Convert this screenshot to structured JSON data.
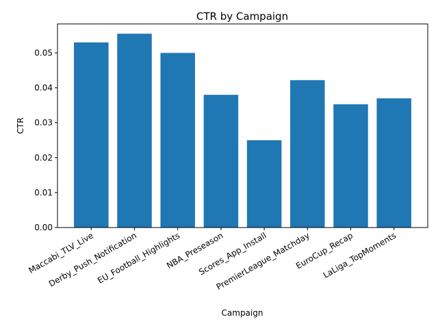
{
  "chart_data": {
    "type": "bar",
    "title": "CTR by Campaign",
    "xlabel": "Campaign",
    "ylabel": "CTR",
    "categories": [
      "Maccabi_TLV_Live",
      "Derby_Push_Notification",
      "EU_Football_Highlights",
      "NBA_Preseason",
      "Scores_App_Install",
      "PremierLeague_Matchday",
      "EuroCup_Recap",
      "LaLiga_TopMoments"
    ],
    "values": [
      0.053,
      0.0555,
      0.05,
      0.038,
      0.025,
      0.0422,
      0.0353,
      0.037
    ],
    "ylim": [
      0,
      0.0583
    ],
    "yticks": [
      "0.00",
      "0.01",
      "0.02",
      "0.03",
      "0.04",
      "0.05"
    ],
    "grid": false,
    "bar_color": "#1f77b4"
  }
}
